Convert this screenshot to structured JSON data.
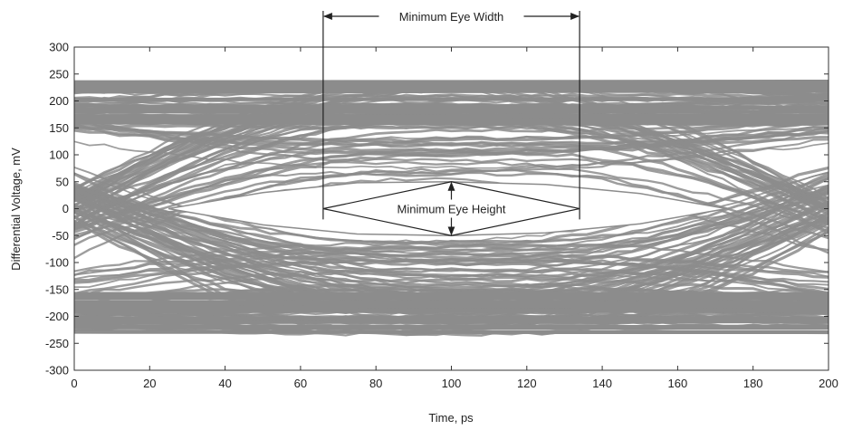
{
  "chart_data": {
    "type": "eye-diagram",
    "xlabel": "Time, ps",
    "ylabel": "Differential Voltage, mV",
    "xlim": [
      0,
      200
    ],
    "ylim": [
      -300,
      300
    ],
    "xticks": [
      0,
      20,
      40,
      60,
      80,
      100,
      120,
      140,
      160,
      180,
      200
    ],
    "yticks": [
      300,
      250,
      200,
      150,
      100,
      50,
      0,
      -50,
      -100,
      -150,
      -200,
      -250,
      -300
    ],
    "grid": false,
    "legend": "none",
    "colors": {
      "trace": "#8c8c8c",
      "frame": "#333333",
      "annotation": "#222222"
    },
    "levels": {
      "high_min": 150,
      "high_max": 235,
      "low_min": -235,
      "low_max": -150
    },
    "crossings": [
      {
        "x": 0,
        "y": 0
      },
      {
        "x": 200,
        "y": 0
      }
    ],
    "eye_opening": {
      "left_x": 25,
      "right_x": 173,
      "top_y": 50,
      "bottom_y": -50,
      "center_x": 100
    },
    "inner_eye_boundary": {
      "upper": [
        [
          25,
          0
        ],
        [
          50,
          30
        ],
        [
          75,
          48
        ],
        [
          100,
          50
        ],
        [
          125,
          45
        ],
        [
          150,
          28
        ],
        [
          173,
          0
        ]
      ],
      "lower": [
        [
          25,
          0
        ],
        [
          50,
          -30
        ],
        [
          75,
          -47
        ],
        [
          100,
          -50
        ],
        [
          125,
          -45
        ],
        [
          150,
          -28
        ],
        [
          173,
          0
        ]
      ]
    },
    "annotations": {
      "eye_width_label": "Minimum Eye Width",
      "eye_width_x": [
        66,
        134
      ],
      "eye_width_arrow_y": 340,
      "eye_height_label": "Minimum Eye Height",
      "eye_height_y": [
        -50,
        50
      ],
      "eye_height_x": 100,
      "diamond": {
        "left_x": 66,
        "right_x": 134,
        "y": 0
      }
    }
  }
}
